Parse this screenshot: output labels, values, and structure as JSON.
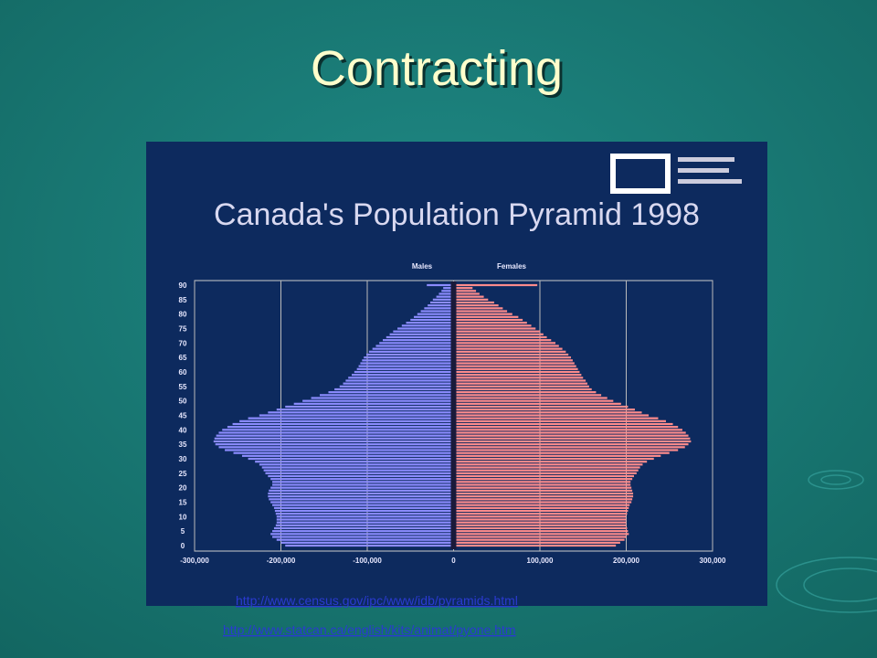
{
  "title": "Contracting",
  "chart_data": {
    "type": "pyramid",
    "title": "Canada's Population Pyramid 1998",
    "categories": [
      "0",
      null,
      null,
      null,
      null,
      "5",
      null,
      null,
      null,
      null,
      "10",
      null,
      null,
      null,
      null,
      "15",
      null,
      null,
      null,
      null,
      "20",
      null,
      null,
      null,
      null,
      "25",
      null,
      null,
      null,
      null,
      "30",
      null,
      null,
      null,
      null,
      "35",
      null,
      null,
      null,
      null,
      "40",
      null,
      null,
      null,
      null,
      "45",
      null,
      null,
      null,
      null,
      "50",
      null,
      null,
      null,
      null,
      "55",
      null,
      null,
      null,
      null,
      "60",
      null,
      null,
      null,
      null,
      "65",
      null,
      null,
      null,
      null,
      "70",
      null,
      null,
      null,
      null,
      "75",
      null,
      null,
      null,
      null,
      "80",
      null,
      null,
      null,
      null,
      "85",
      null,
      null,
      null,
      null,
      "90"
    ],
    "series": [
      {
        "name": "Males",
        "color": "#8c8cff",
        "values": [
          -195000,
          -200000,
          -205000,
          -210000,
          -212000,
          -210000,
          -208000,
          -206000,
          -205000,
          -205000,
          -205000,
          -206000,
          -207000,
          -208000,
          -210000,
          -212000,
          -214000,
          -215000,
          -215000,
          -214000,
          -212000,
          -210000,
          -210000,
          -212000,
          -215000,
          -218000,
          -220000,
          -222000,
          -225000,
          -230000,
          -238000,
          -245000,
          -255000,
          -265000,
          -272000,
          -276000,
          -278000,
          -277000,
          -275000,
          -272000,
          -268000,
          -262000,
          -256000,
          -248000,
          -238000,
          -225000,
          -215000,
          -205000,
          -195000,
          -185000,
          -175000,
          -165000,
          -155000,
          -145000,
          -138000,
          -132000,
          -128000,
          -125000,
          -122000,
          -118000,
          -115000,
          -112000,
          -110000,
          -108000,
          -106000,
          -104000,
          -101000,
          -98000,
          -94000,
          -90000,
          -86000,
          -82000,
          -78000,
          -74000,
          -70000,
          -65000,
          -60000,
          -55000,
          -50000,
          -46000,
          -42000,
          -38000,
          -34000,
          -30000,
          -27000,
          -24000,
          -20000,
          -17000,
          -14000,
          -12000,
          -31000
        ]
      },
      {
        "name": "Females",
        "color": "#ff8c8c",
        "values": [
          188000,
          193000,
          198000,
          200000,
          203000,
          202000,
          201000,
          200000,
          200000,
          200000,
          200000,
          201000,
          202000,
          203000,
          204000,
          206000,
          207000,
          208000,
          208000,
          207000,
          206000,
          205000,
          205000,
          207000,
          209000,
          212000,
          214000,
          216000,
          219000,
          224000,
          232000,
          240000,
          250000,
          260000,
          268000,
          272000,
          275000,
          274000,
          272000,
          269000,
          265000,
          260000,
          254000,
          246000,
          237000,
          226000,
          218000,
          210000,
          202000,
          194000,
          185000,
          178000,
          171000,
          165000,
          160000,
          157000,
          155000,
          153000,
          150000,
          148000,
          146000,
          144000,
          142000,
          140000,
          138000,
          136000,
          133000,
          130000,
          126000,
          122000,
          118000,
          113000,
          108000,
          104000,
          100000,
          95000,
          90000,
          85000,
          80000,
          75000,
          68000,
          62000,
          57000,
          52000,
          47000,
          40000,
          35000,
          30000,
          26000,
          22000,
          97000
        ]
      }
    ],
    "xlim": [
      -300000,
      300000
    ],
    "xticks": [
      {
        "value": -300000,
        "label": "-300,000"
      },
      {
        "value": -200000,
        "label": "-200,000"
      },
      {
        "value": -100000,
        "label": "-100,000"
      },
      0,
      {
        "value": 100000,
        "label": "100,000"
      },
      {
        "value": 200000,
        "label": "200,000"
      },
      {
        "value": 300000,
        "label": "300,000"
      }
    ],
    "grid": true
  },
  "links": [
    "http://www.census.gov/ipc/www/idb/pyramids.html",
    "http://www.statcan.ca/english/kits/animat/pyone.htm"
  ]
}
